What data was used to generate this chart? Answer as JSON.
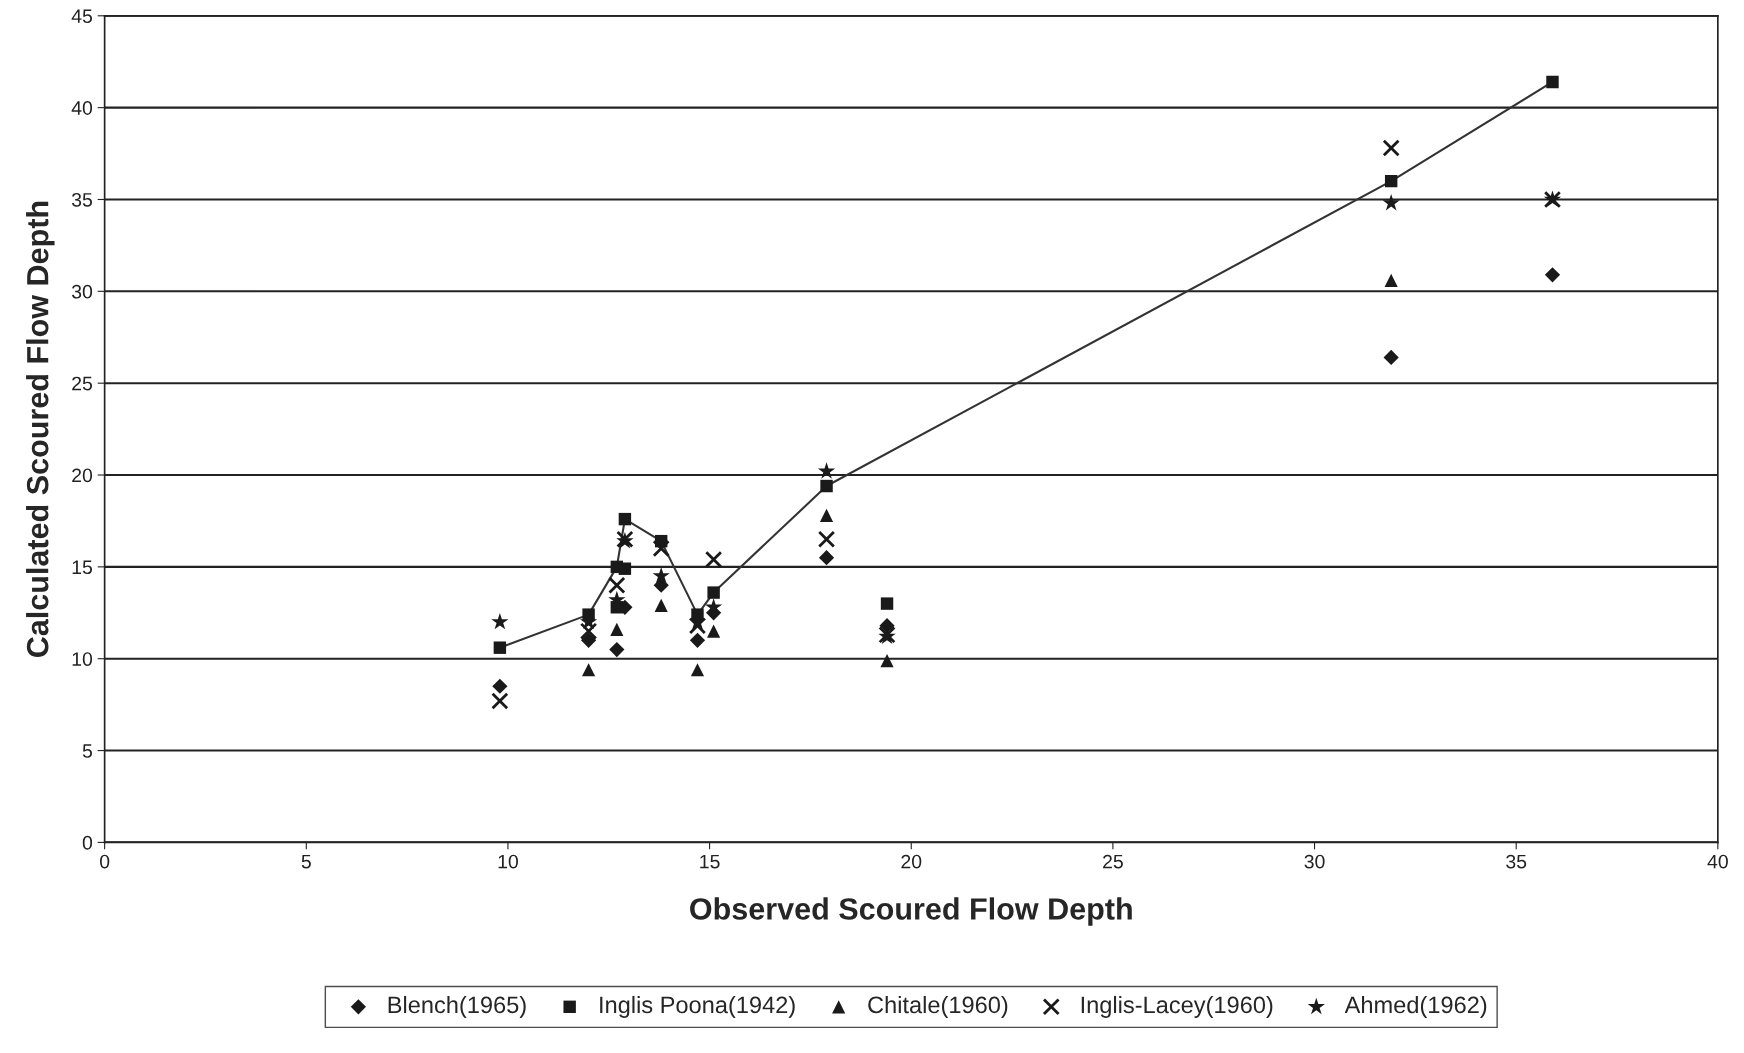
{
  "chart_data": {
    "type": "scatter",
    "xlabel": "Observed Scoured Flow Depth",
    "ylabel": "Calculated Scoured Flow Depth",
    "xlim": [
      0,
      40
    ],
    "xticks": [
      0,
      5,
      10,
      15,
      20,
      25,
      30,
      35,
      40
    ],
    "ylim": [
      0,
      45
    ],
    "yticks": [
      0,
      5,
      10,
      15,
      20,
      25,
      30,
      35,
      40,
      45
    ],
    "grid": "y",
    "legend": "bottom",
    "series": [
      {
        "name": "Blench(1965)",
        "color": "#1a1a1a",
        "marker": "diamond",
        "x": [
          9.8,
          12,
          12.7,
          12.9,
          13.8,
          14.7,
          15.1,
          17.9,
          19.4,
          31.9,
          35.9
        ],
        "values": [
          8.5,
          11,
          10.5,
          12.8,
          14,
          11,
          12.5,
          15.5,
          11.8,
          26.4,
          30.9
        ]
      },
      {
        "name": "Inglis Poona(1942)",
        "color": "#1a1a1a",
        "marker": "square",
        "x": [
          9.8,
          12,
          12.7,
          12.7,
          12.9,
          12.9,
          13.8,
          14.7,
          15.1,
          17.9,
          19.4,
          31.9,
          35.9
        ],
        "values": [
          10.6,
          12.4,
          15.0,
          12.8,
          17.6,
          14.9,
          16.4,
          12.4,
          13.6,
          19.4,
          13.0,
          36.0,
          41.4
        ]
      },
      {
        "name": "Chitale(1960)",
        "color": "#1a1a1a",
        "marker": "triangle",
        "x": [
          12,
          12.7,
          13.8,
          14.7,
          15.1,
          17.9,
          19.4,
          31.9
        ],
        "values": [
          9.4,
          11.6,
          12.9,
          9.4,
          11.5,
          17.8,
          9.9,
          30.6
        ]
      },
      {
        "name": "Inglis-Lacey(1960)",
        "color": "#1a1a1a",
        "marker": "cross",
        "x": [
          9.8,
          12,
          12.7,
          12.9,
          13.8,
          14.7,
          15.1,
          17.9,
          19.4,
          31.9,
          35.9
        ],
        "values": [
          7.7,
          11.5,
          14.0,
          16.5,
          16.0,
          11.8,
          15.4,
          16.5,
          11.3,
          37.8,
          35.0
        ]
      },
      {
        "name": "Ahmed(1962)",
        "color": "#1a1a1a",
        "marker": "star",
        "x": [
          9.8,
          12,
          12.7,
          12.9,
          13.8,
          14.7,
          15.1,
          17.9,
          19.4,
          31.9,
          35.9
        ],
        "values": [
          12.0,
          12.0,
          13.2,
          16.4,
          14.5,
          12.0,
          12.8,
          20.2,
          11.2,
          34.8,
          35.0
        ]
      },
      {
        "type": "line",
        "color": "#333333",
        "marker": "none",
        "x": [
          9.8,
          12,
          12.7,
          12.9,
          13.8,
          14.7,
          15.1,
          17.9,
          31.9,
          35.9
        ],
        "values": [
          10.6,
          12.4,
          15.0,
          17.6,
          16.4,
          12.4,
          13.6,
          19.4,
          36.0,
          41.4
        ]
      }
    ]
  }
}
